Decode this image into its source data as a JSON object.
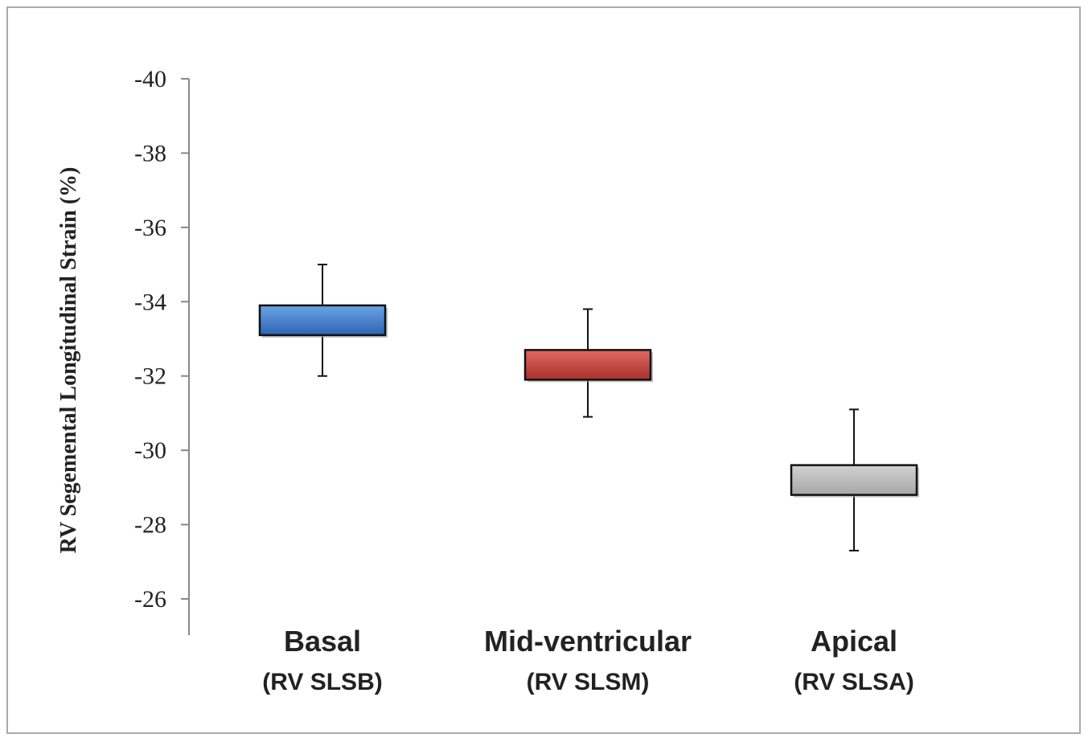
{
  "chart_data": {
    "type": "box",
    "ylabel": "RV Segemental Longitudinal Strain (%)",
    "xlabel": "",
    "ylim": [
      -26,
      -40
    ],
    "yticks": [
      -40,
      -38,
      -36,
      -34,
      -32,
      -30,
      -28,
      -26
    ],
    "y_inverted": true,
    "categories": [
      {
        "label": "Basal",
        "sublabel": "(RV SLSB)",
        "box_low": -33.1,
        "box_high": -33.9,
        "whisker_low": -32.0,
        "whisker_high": -35.0,
        "color": "#3f7fd0"
      },
      {
        "label": "Mid-ventricular",
        "sublabel": "(RV SLSM)",
        "box_low": -31.9,
        "box_high": -32.7,
        "whisker_low": -30.9,
        "whisker_high": -33.8,
        "color": "#c8413c"
      },
      {
        "label": "Apical",
        "sublabel": "(RV SLSA)",
        "box_low": -28.8,
        "box_high": -29.6,
        "whisker_low": -27.3,
        "whisker_high": -31.1,
        "color": "#b8b8b8"
      }
    ],
    "grid": false,
    "legend": "none"
  }
}
